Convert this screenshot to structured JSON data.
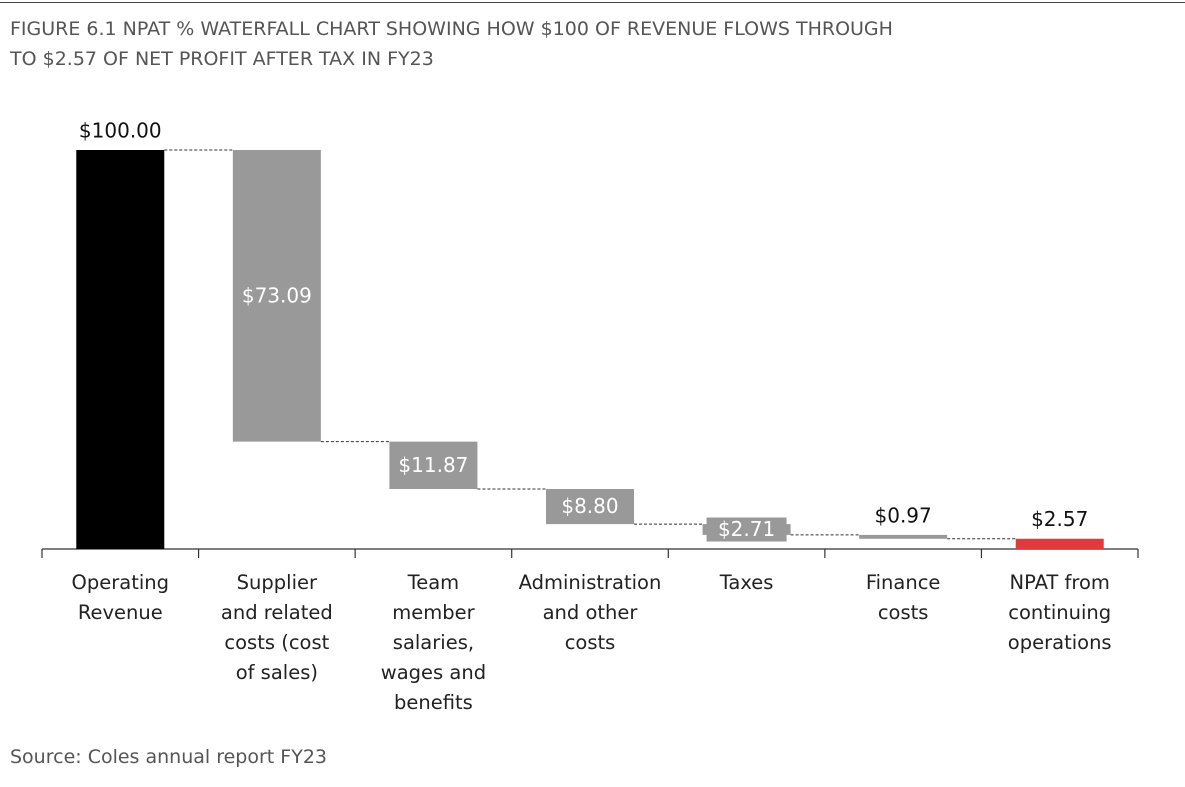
{
  "chart_data": {
    "type": "waterfall",
    "title": "FIGURE 6.1 NPAT % WATERFALL CHART SHOWING HOW $100 OF REVENUE FLOWS THROUGH\nTO $2.57 OF NET PROFIT AFTER TAX IN FY23",
    "categories": [
      "Operating\nRevenue",
      "Supplier\nand related\ncosts (cost\nof sales)",
      "Team\nmember\nsalaries,\nwages and\nbenefits",
      "Administration\nand other\ncosts",
      "Taxes",
      "Finance\ncosts",
      "NPAT from\ncontinuing\noperations"
    ],
    "values": [
      100,
      73.09,
      11.87,
      8.8,
      2.71,
      0.97,
      2.57
    ],
    "value_labels": [
      "$100.00",
      "$73.09",
      "$11.87",
      "$8.80",
      "$2.71",
      "$0.97",
      "$2.57"
    ],
    "colors": [
      "#000000",
      "#999999",
      "#999999",
      "#999999",
      "#999999",
      "#999999",
      "#e0393e"
    ],
    "ylim": [
      0,
      100
    ],
    "source": "Source: Coles annual report FY23"
  }
}
